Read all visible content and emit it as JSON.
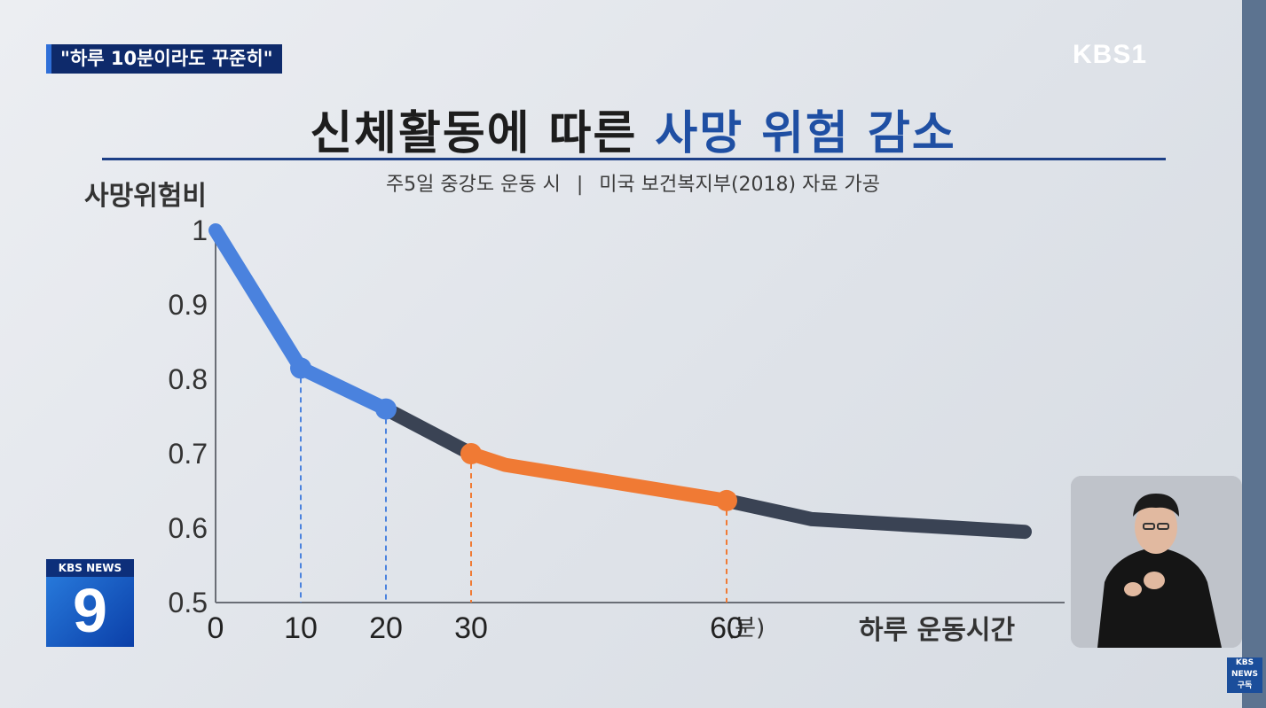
{
  "headline_tag": "\"하루 10분이라도 꾸준히\"",
  "broadcaster_logo": "KBS1",
  "title": {
    "main": "신체활동에 따른",
    "highlight": "사망 위험 감소"
  },
  "subtitle": {
    "left": "주5일 중강도 운동 시",
    "separator": "|",
    "right": "미국 보건복지부(2018) 자료 가공"
  },
  "news_badge": {
    "brand": "KBS NEWS",
    "number": "9"
  },
  "corner_badge": {
    "brand": "KBS NEWS",
    "label": "구독"
  },
  "colors": {
    "blue": "#4a82de",
    "orange": "#f07a34",
    "dark": "#3a4354",
    "title_highlight": "#1f4fa3"
  },
  "icons": {
    "sign_language_interpreter": "person-icon"
  },
  "chart_data": {
    "type": "line",
    "title": "",
    "ylabel": "사망위험비",
    "xlabel": "하루 운동시간",
    "xunit": "(분)",
    "x_ticks": [
      "0",
      "10",
      "20",
      "30",
      "60"
    ],
    "y_ticks": [
      "1",
      "0.9",
      "0.8",
      "0.7",
      "0.6",
      "0.5"
    ],
    "ylim": [
      0.5,
      1.0
    ],
    "xlim": [
      0,
      97
    ],
    "grid": false,
    "series": [
      {
        "x": [
          0,
          10,
          20,
          30,
          34,
          60,
          70,
          95
        ],
        "y": [
          1.0,
          0.815,
          0.76,
          0.7,
          0.685,
          0.637,
          0.612,
          0.595
        ]
      }
    ],
    "highlighted_points": [
      10,
      20,
      30,
      60
    ],
    "segment_colors": [
      {
        "from": 0,
        "to": 20,
        "color": "blue"
      },
      {
        "from": 20,
        "to": 30,
        "color": "dark"
      },
      {
        "from": 30,
        "to": 60,
        "color": "orange"
      },
      {
        "from": 60,
        "to": 95,
        "color": "dark"
      }
    ]
  }
}
